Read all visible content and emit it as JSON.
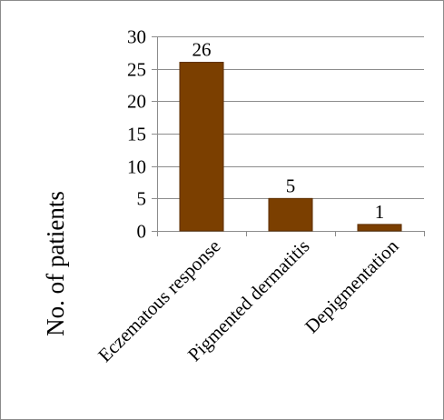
{
  "chart_data": {
    "type": "bar",
    "categories": [
      "Eczematous response",
      "Pigmented dermatitis",
      "Depigmentation"
    ],
    "values": [
      26,
      5,
      1
    ],
    "data_labels": [
      "26",
      "5",
      "1"
    ],
    "title": "",
    "xlabel": "",
    "ylabel": "No. of patients",
    "ylim": [
      0,
      30
    ],
    "yticks": [
      0,
      5,
      10,
      15,
      20,
      25,
      30
    ],
    "ytick_labels": [
      "0",
      "5",
      "10",
      "15",
      "20",
      "25",
      "30"
    ],
    "grid": true,
    "legend": "none",
    "bar_color": "#7B3F00",
    "bar_border_color": "#5c2e00",
    "grid_color": "#8c8c8c",
    "axis_color": "#8c8c8c"
  }
}
